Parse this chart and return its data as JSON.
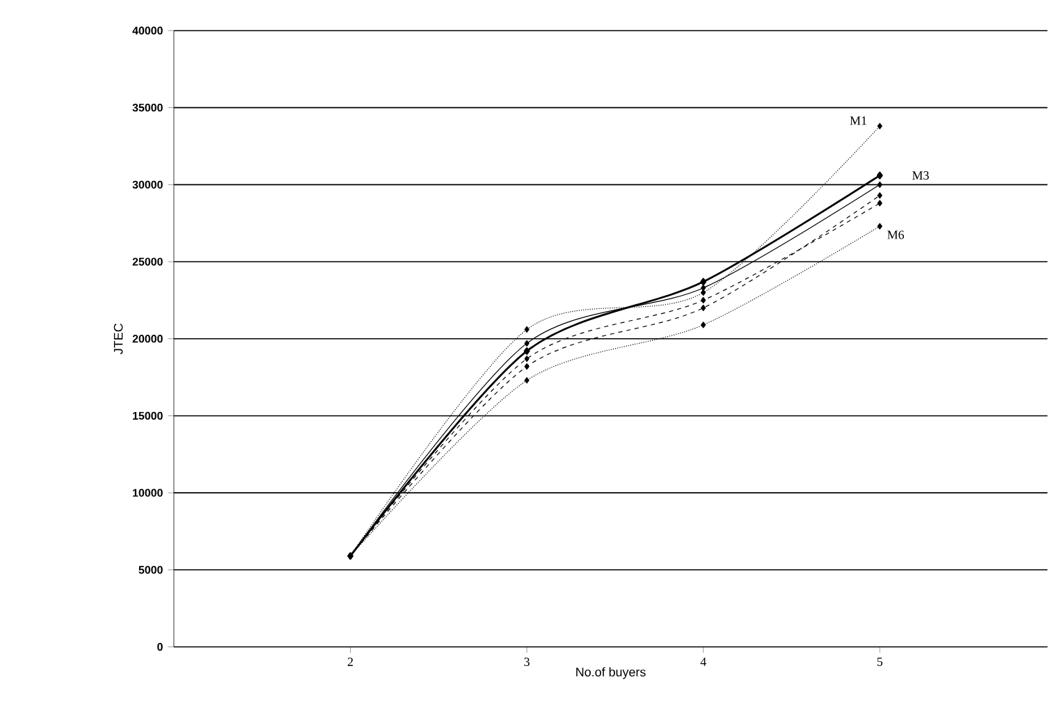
{
  "chart_data": {
    "type": "line",
    "xlabel": "No.of buyers",
    "ylabel": "JTEC",
    "x": [
      2,
      3,
      4,
      5
    ],
    "xlim": [
      1,
      5.95
    ],
    "xticks": [
      2,
      3,
      4,
      5
    ],
    "ylim": [
      0,
      40000
    ],
    "yticks": [
      0,
      5000,
      10000,
      15000,
      20000,
      25000,
      30000,
      35000,
      40000
    ],
    "grid": "y",
    "marker": "diamond",
    "series": [
      {
        "name": "M1",
        "color": "#000000",
        "line_style": "dotted",
        "values": [
          5900,
          20600,
          23000,
          33800
        ]
      },
      {
        "color": "#000000",
        "line_style": "solid",
        "values": [
          5900,
          19700,
          23300,
          30000
        ]
      },
      {
        "name": "M3",
        "color": "#000000",
        "line_style": "solid",
        "values": [
          5900,
          19200,
          23700,
          30600
        ]
      },
      {
        "color": "#000000",
        "line_style": "dashed",
        "values": [
          5900,
          18700,
          22500,
          28800
        ]
      },
      {
        "color": "#000000",
        "line_style": "dashed",
        "values": [
          5900,
          18200,
          22000,
          29300
        ]
      },
      {
        "name": "M6",
        "color": "#000000",
        "line_style": "dotted",
        "values": [
          5900,
          17300,
          20900,
          27300
        ]
      }
    ]
  }
}
